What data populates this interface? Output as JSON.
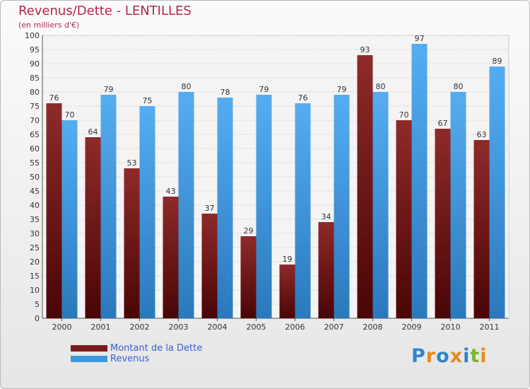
{
  "chart_data": {
    "type": "bar",
    "title": "Revenus/Dette - LENTILLES",
    "subtitle": "(en milliers d'€)",
    "categories": [
      "2000",
      "2001",
      "2002",
      "2003",
      "2004",
      "2005",
      "2006",
      "2007",
      "2008",
      "2009",
      "2010",
      "2011"
    ],
    "series": [
      {
        "name": "Montant de la Dette",
        "color": "#7a1a1a",
        "values": [
          76,
          64,
          53,
          43,
          37,
          29,
          19,
          34,
          93,
          70,
          67,
          63
        ]
      },
      {
        "name": "Revenus",
        "color": "#3d97dd",
        "values": [
          70,
          79,
          75,
          80,
          78,
          79,
          76,
          79,
          80,
          97,
          80,
          89
        ]
      }
    ],
    "ylim": [
      0,
      100
    ],
    "yticks": [
      0,
      5,
      10,
      15,
      20,
      25,
      30,
      35,
      40,
      45,
      50,
      55,
      60,
      65,
      70,
      75,
      80,
      85,
      90,
      95,
      100
    ],
    "grid": true,
    "legend_position": "bottom-left"
  },
  "logo": {
    "text": "Proxiti",
    "colors": [
      "#2f86c8",
      "#e58a1f",
      "#2f86c8",
      "#e58a1f",
      "#2f86c8",
      "#7ab530",
      "#e58a1f"
    ]
  }
}
